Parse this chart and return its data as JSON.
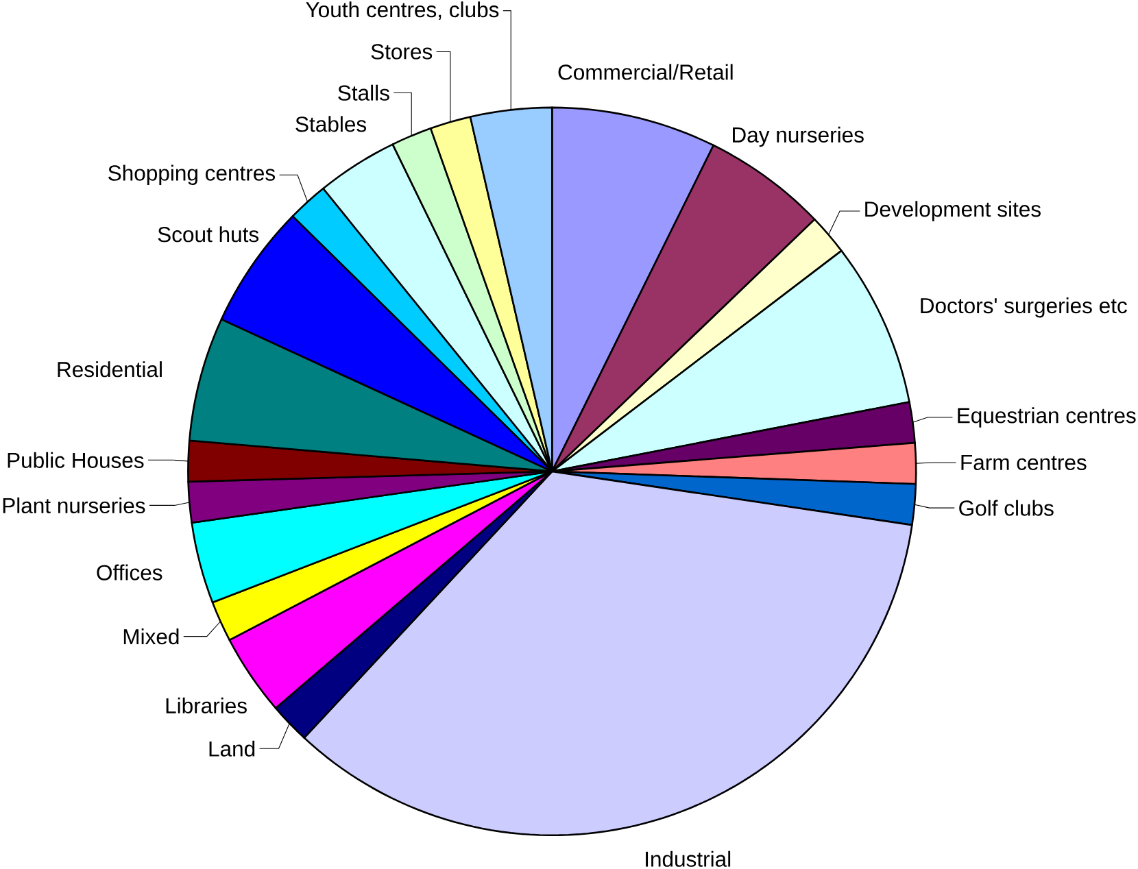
{
  "chart_data": {
    "type": "pie",
    "categories": [
      "Commercial/Retail",
      "Day nurseries",
      "Development sites",
      "Doctors' surgeries etc",
      "Equestrian centres",
      "Farm centres",
      "Golf clubs",
      "Industrial",
      "Land",
      "Libraries",
      "Mixed",
      "Offices",
      "Plant nurseries",
      "Public Houses",
      "Residential",
      "Scout huts",
      "Shopping centres",
      "Stables",
      "Stalls",
      "Stores",
      "Youth centres, clubs"
    ],
    "values": [
      7.3,
      5.5,
      1.8,
      7.3,
      1.8,
      1.8,
      1.8,
      34.5,
      1.8,
      3.6,
      1.8,
      3.6,
      1.8,
      1.8,
      5.5,
      5.5,
      1.8,
      3.6,
      1.8,
      1.8,
      3.6
    ],
    "colors": [
      "#9999ff",
      "#993366",
      "#ffffcc",
      "#ccffff",
      "#660066",
      "#ff8080",
      "#0066cc",
      "#ccccff",
      "#000080",
      "#ff00ff",
      "#ffff00",
      "#00ffff",
      "#800080",
      "#800000",
      "#008080",
      "#0000ff",
      "#00ccff",
      "#ccffff",
      "#ccffcc",
      "#ffff99",
      "#99ccff"
    ]
  }
}
